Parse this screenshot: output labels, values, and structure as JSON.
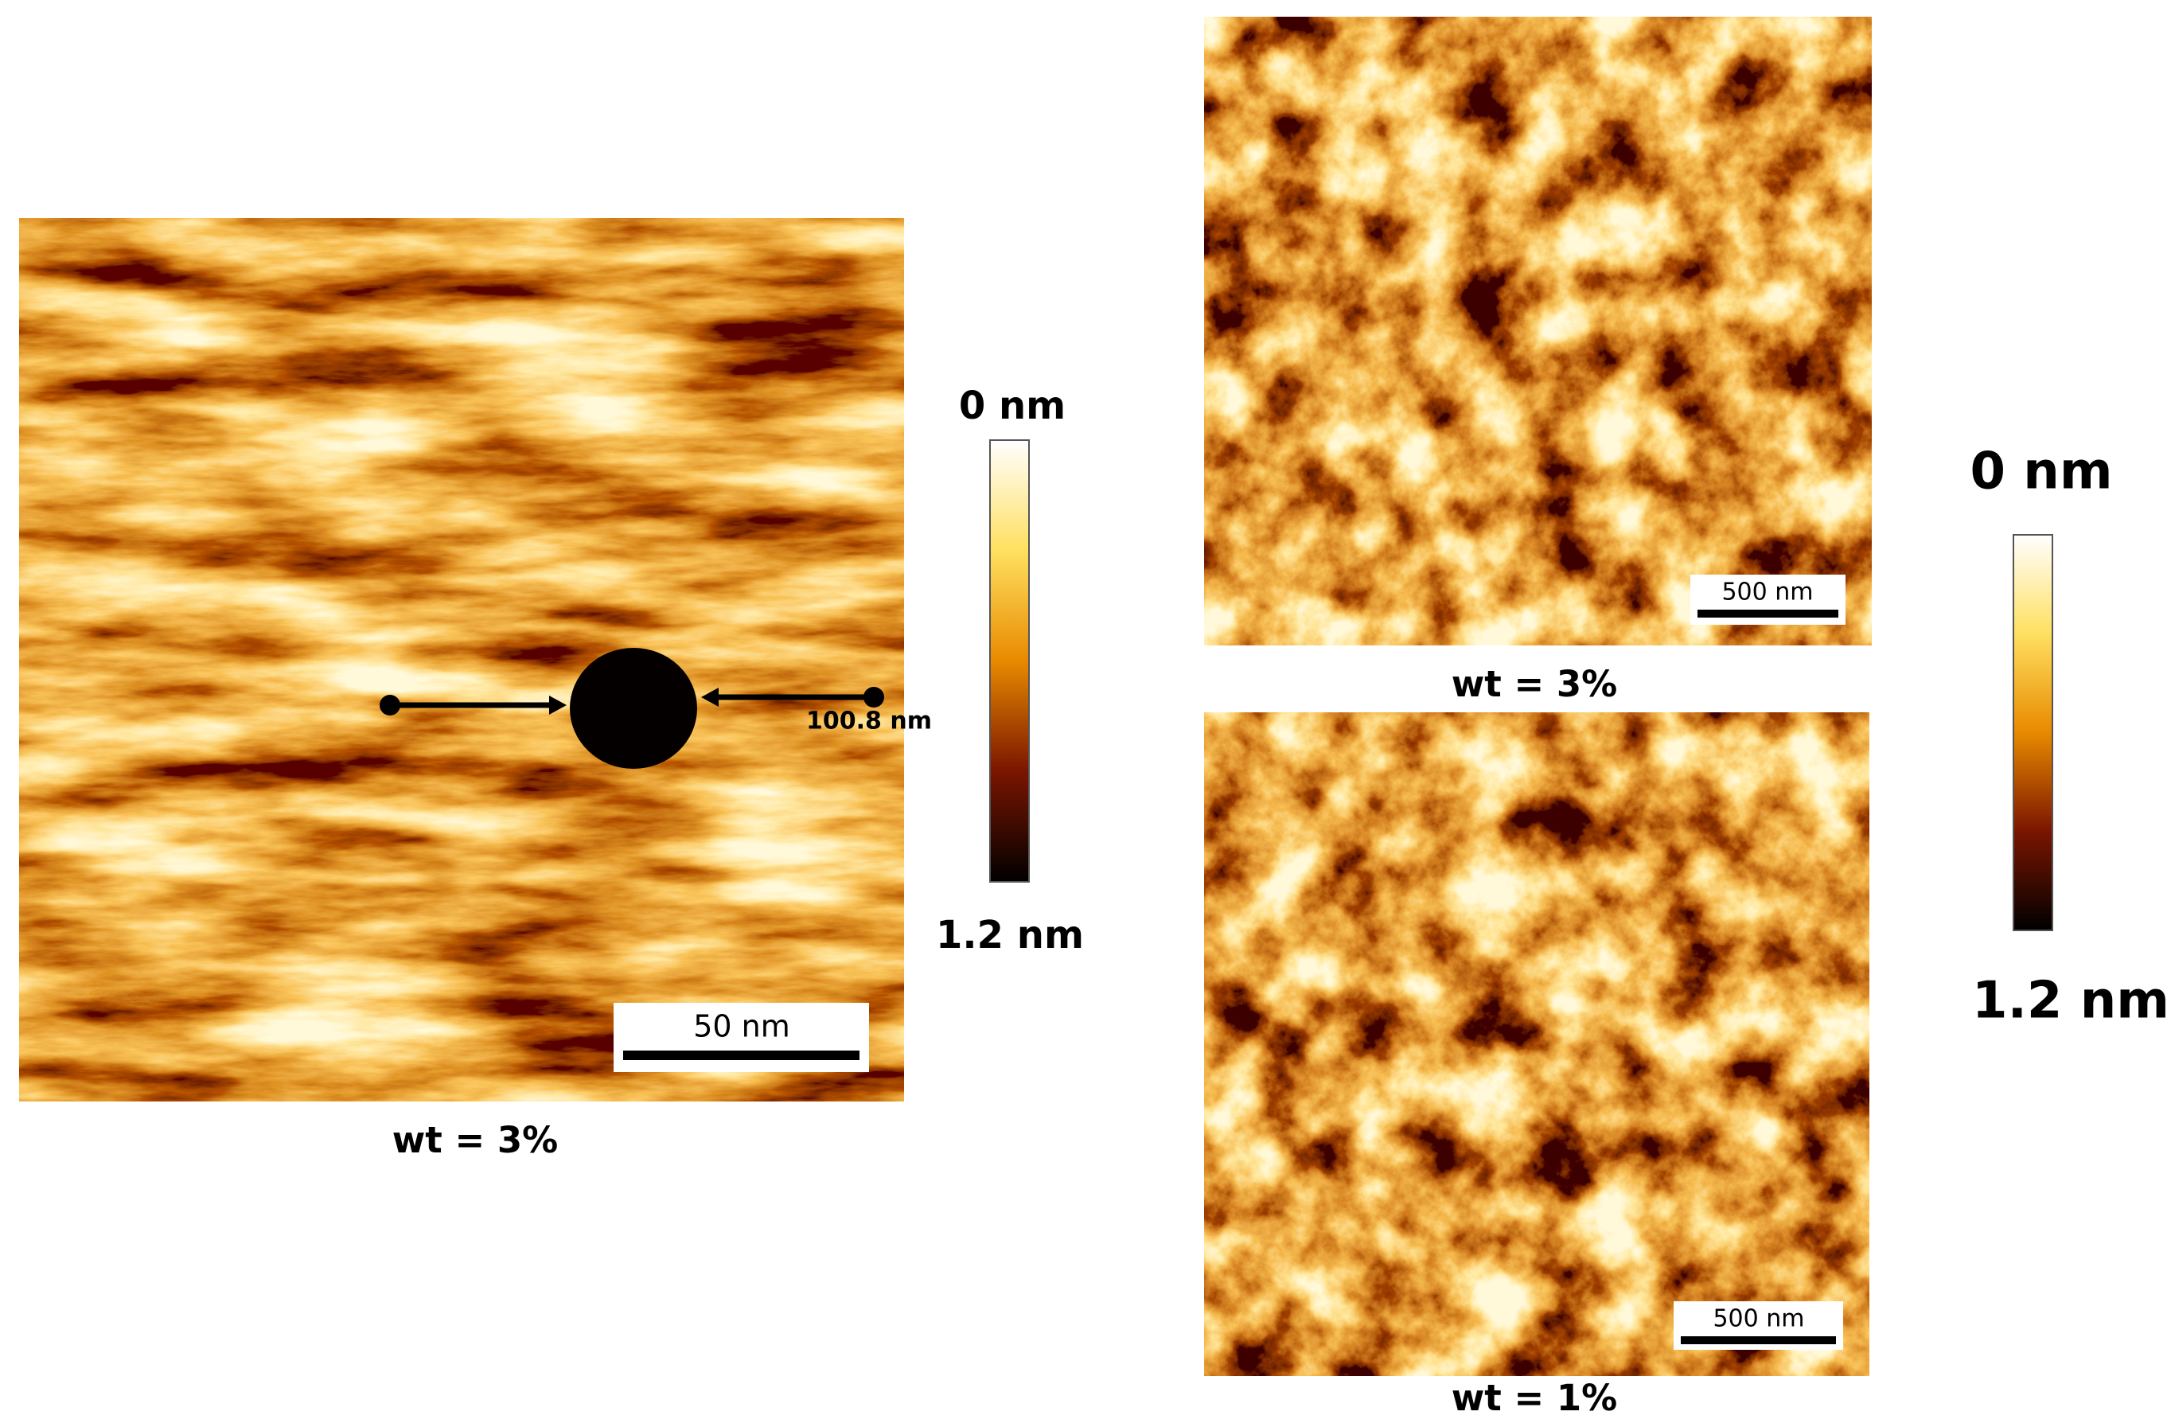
{
  "panels": [
    {
      "caption": "wt = 3%",
      "scale_bar": "50 nm",
      "annotation": "100.8 nm"
    },
    {
      "caption": "wt = 3%",
      "scale_bar": "500 nm"
    },
    {
      "caption": "wt = 1%",
      "scale_bar": "500 nm"
    }
  ],
  "colorbars": [
    {
      "top": "0 nm",
      "bottom": "1.2 nm"
    },
    {
      "top": "0 nm",
      "bottom": "1.2 nm"
    }
  ]
}
